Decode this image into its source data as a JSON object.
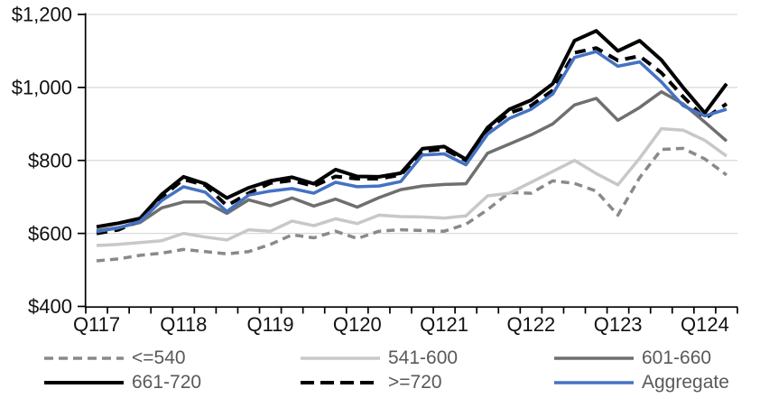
{
  "chart_data": {
    "type": "line",
    "title": "",
    "ylabel": "",
    "xlabel": "",
    "ylim": [
      400,
      1200
    ],
    "ytick_step": 200,
    "ytick_labels": [
      "$400",
      "$600",
      "$800",
      "$1,000",
      "$1,200"
    ],
    "grid": "horizontal-only",
    "legend_position": "bottom",
    "categories": [
      "Q117",
      "Q217",
      "Q317",
      "Q417",
      "Q118",
      "Q218",
      "Q318",
      "Q418",
      "Q119",
      "Q219",
      "Q319",
      "Q419",
      "Q120",
      "Q220",
      "Q320",
      "Q420",
      "Q121",
      "Q221",
      "Q321",
      "Q421",
      "Q122",
      "Q222",
      "Q322",
      "Q422",
      "Q123",
      "Q223",
      "Q323",
      "Q423",
      "Q124",
      "Q224"
    ],
    "x_axis_visible_labels": [
      "Q117",
      "Q118",
      "Q119",
      "Q120",
      "Q121",
      "Q122",
      "Q123",
      "Q124"
    ],
    "x_axis_label_indices": [
      0,
      4,
      8,
      12,
      16,
      20,
      24,
      28
    ],
    "series": [
      {
        "name": "<=540",
        "color": "#8A8A8A",
        "style": "dashed",
        "width": 3.5,
        "values": [
          525,
          530,
          540,
          546,
          556,
          550,
          544,
          550,
          570,
          596,
          588,
          606,
          586,
          606,
          610,
          608,
          606,
          625,
          665,
          712,
          710,
          744,
          737,
          716,
          650,
          753,
          830,
          833,
          804,
          760
        ]
      },
      {
        "name": "541-600",
        "color": "#C8C8C8",
        "style": "solid",
        "width": 3.5,
        "values": [
          567,
          570,
          575,
          580,
          600,
          590,
          582,
          610,
          606,
          634,
          621,
          640,
          627,
          650,
          646,
          645,
          642,
          648,
          703,
          710,
          740,
          770,
          800,
          764,
          733,
          806,
          887,
          883,
          855,
          812
        ]
      },
      {
        "name": "601-660",
        "color": "#6F6F6F",
        "style": "solid",
        "width": 3.5,
        "values": [
          608,
          616,
          630,
          670,
          686,
          686,
          655,
          692,
          676,
          697,
          675,
          694,
          672,
          698,
          720,
          730,
          734,
          736,
          820,
          845,
          870,
          900,
          952,
          970,
          910,
          945,
          988,
          955,
          905,
          853
        ]
      },
      {
        "name": "661-720",
        "color": "#000000",
        "style": "solid",
        "width": 4,
        "values": [
          618,
          628,
          641,
          707,
          755,
          736,
          697,
          725,
          744,
          754,
          736,
          775,
          756,
          755,
          765,
          832,
          838,
          803,
          890,
          940,
          965,
          1010,
          1128,
          1155,
          1100,
          1128,
          1075,
          1000,
          930,
          1010
        ]
      },
      {
        "name": ">=720",
        "color": "#000000",
        "style": "dashed",
        "width": 4,
        "values": [
          600,
          610,
          635,
          700,
          748,
          732,
          676,
          710,
          738,
          745,
          730,
          756,
          750,
          750,
          760,
          825,
          831,
          800,
          884,
          930,
          950,
          992,
          1095,
          1108,
          1074,
          1086,
          1040,
          975,
          915,
          955
        ]
      },
      {
        "name": "Aggregate",
        "color": "#4472C4",
        "style": "solid",
        "width": 3.5,
        "values": [
          605,
          615,
          633,
          690,
          728,
          713,
          660,
          705,
          716,
          723,
          710,
          740,
          728,
          730,
          742,
          815,
          818,
          788,
          872,
          915,
          940,
          982,
          1082,
          1098,
          1058,
          1070,
          1015,
          950,
          922,
          940
        ]
      }
    ]
  },
  "legend": {
    "items": [
      {
        "label": "<=540",
        "series_index": 0
      },
      {
        "label": "541-600",
        "series_index": 1
      },
      {
        "label": "601-660",
        "series_index": 2
      },
      {
        "label": "661-720",
        "series_index": 3
      },
      {
        "label": ">=720",
        "series_index": 4
      },
      {
        "label": "Aggregate",
        "series_index": 5
      }
    ]
  },
  "colors": {
    "axis": "#000000",
    "gridline": "#D9D9D9",
    "axis_text": "#111111",
    "legend_text": "#595959",
    "accent_blue": "#4472C4"
  }
}
